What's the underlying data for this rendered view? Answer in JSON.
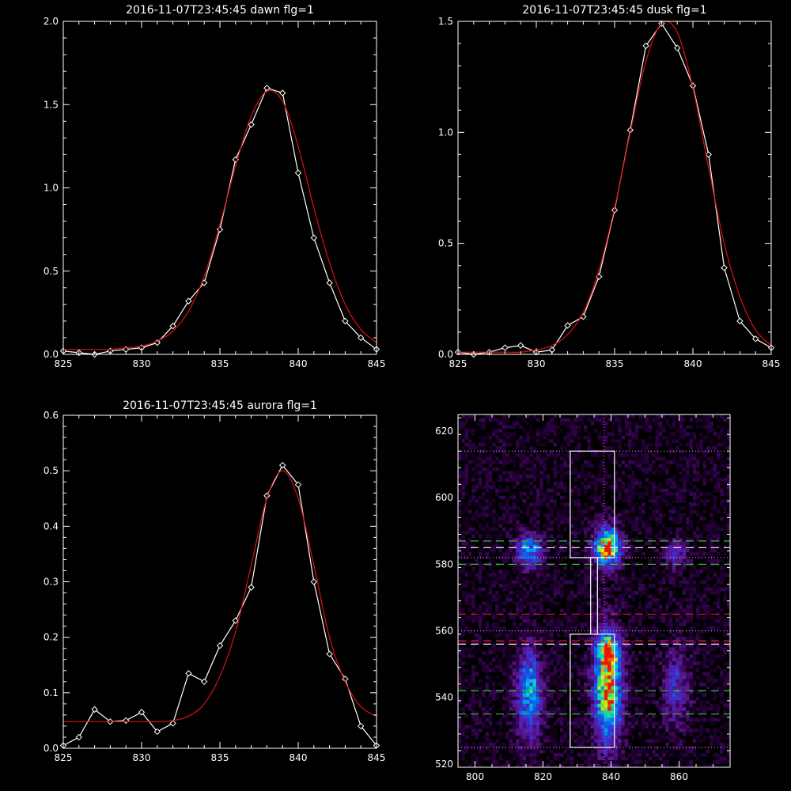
{
  "colors": {
    "background": "#000000",
    "axis": "#ffffff",
    "data": "#ffffff",
    "fit": "#e01010",
    "green_line": "#30c030",
    "red_line": "#d02020",
    "white_dashed": "#ffffff"
  },
  "chart_data": [
    {
      "type": "line",
      "title": "2016-11-07T23:45:45 dawn flg=1",
      "xlim": [
        825,
        845
      ],
      "ylim": [
        0,
        2.0
      ],
      "xticks": [
        "825",
        "830",
        "835",
        "840",
        "845"
      ],
      "yticks": [
        "0.0",
        "0.5",
        "1.0",
        "1.5",
        "2.0"
      ],
      "series": [
        {
          "marker": "diamond",
          "x": [
            825,
            826,
            827,
            828,
            829,
            830,
            831,
            832,
            833,
            834,
            835,
            836,
            837,
            838,
            839,
            840,
            841,
            842,
            843,
            844,
            845
          ],
          "y": [
            0.02,
            0.01,
            0.0,
            0.02,
            0.03,
            0.04,
            0.07,
            0.17,
            0.32,
            0.43,
            0.75,
            1.17,
            1.38,
            1.6,
            1.57,
            1.09,
            0.7,
            0.43,
            0.2,
            0.1,
            0.03
          ]
        },
        {
          "marker": "none",
          "x": [
            825,
            826,
            827,
            828,
            829,
            830,
            831,
            832,
            833,
            834,
            835,
            836,
            837,
            838,
            839,
            840,
            841,
            842,
            843,
            844,
            845
          ],
          "y": [
            0.03,
            0.03,
            0.03,
            0.03,
            0.04,
            0.05,
            0.08,
            0.14,
            0.26,
            0.47,
            0.78,
            1.13,
            1.43,
            1.58,
            1.52,
            1.25,
            0.88,
            0.55,
            0.3,
            0.15,
            0.07
          ]
        }
      ]
    },
    {
      "type": "line",
      "title": "2016-11-07T23:45:45 dusk flg=1",
      "xlim": [
        825,
        845
      ],
      "ylim": [
        0,
        1.5
      ],
      "xticks": [
        "825",
        "830",
        "835",
        "840",
        "845"
      ],
      "yticks": [
        "0.0",
        "0.5",
        "1.0",
        "1.5"
      ],
      "series": [
        {
          "marker": "diamond",
          "x": [
            825,
            826,
            827,
            828,
            829,
            830,
            831,
            832,
            833,
            834,
            835,
            836,
            837,
            838,
            839,
            840,
            841,
            842,
            843,
            844,
            845
          ],
          "y": [
            0.01,
            0.0,
            0.01,
            0.03,
            0.04,
            0.01,
            0.02,
            0.13,
            0.17,
            0.35,
            0.65,
            1.01,
            1.39,
            1.49,
            1.38,
            1.21,
            0.9,
            0.39,
            0.15,
            0.07,
            0.03
          ]
        },
        {
          "marker": "none",
          "x": [
            825,
            826,
            827,
            828,
            829,
            830,
            831,
            832,
            833,
            834,
            835,
            836,
            837,
            838,
            839,
            840,
            841,
            842,
            843,
            844,
            845
          ],
          "y": [
            0.01,
            0.01,
            0.01,
            0.01,
            0.01,
            0.02,
            0.04,
            0.09,
            0.19,
            0.38,
            0.66,
            1.0,
            1.32,
            1.49,
            1.45,
            1.2,
            0.84,
            0.5,
            0.26,
            0.11,
            0.04
          ]
        }
      ]
    },
    {
      "type": "line",
      "title": "2016-11-07T23:45:45 aurora flg=1",
      "xlim": [
        825,
        845
      ],
      "ylim": [
        0,
        0.6
      ],
      "xticks": [
        "825",
        "830",
        "835",
        "840",
        "845"
      ],
      "yticks": [
        "0.0",
        "0.1",
        "0.2",
        "0.3",
        "0.4",
        "0.5",
        "0.6"
      ],
      "series": [
        {
          "marker": "diamond",
          "x": [
            825,
            826,
            827,
            828,
            829,
            830,
            831,
            832,
            833,
            834,
            835,
            836,
            837,
            838,
            839,
            840,
            841,
            842,
            843,
            844,
            845
          ],
          "y": [
            0.005,
            0.02,
            0.07,
            0.048,
            0.05,
            0.065,
            0.03,
            0.045,
            0.135,
            0.12,
            0.185,
            0.23,
            0.29,
            0.455,
            0.51,
            0.475,
            0.3,
            0.17,
            0.125,
            0.04,
            0.005
          ]
        },
        {
          "marker": "none",
          "x": [
            825,
            826,
            827,
            828,
            829,
            830,
            831,
            832,
            833,
            834,
            835,
            836,
            837,
            838,
            839,
            840,
            841,
            842,
            843,
            844,
            845
          ],
          "y": [
            0.048,
            0.048,
            0.048,
            0.048,
            0.048,
            0.048,
            0.048,
            0.05,
            0.058,
            0.08,
            0.13,
            0.21,
            0.33,
            0.45,
            0.5,
            0.45,
            0.33,
            0.2,
            0.12,
            0.075,
            0.058
          ]
        }
      ]
    },
    {
      "type": "heatmap",
      "xlim": [
        795,
        875
      ],
      "ylim": [
        519,
        625
      ],
      "xticks": [
        "800",
        "820",
        "840",
        "860"
      ],
      "yticks": [
        "520",
        "540",
        "560",
        "580",
        "600",
        "620"
      ],
      "spots": [
        {
          "x": 816,
          "y": 584,
          "sx": 2.6,
          "sy": 3.5,
          "amp": 0.6
        },
        {
          "x": 839,
          "y": 585,
          "sx": 2.6,
          "sy": 4.0,
          "amp": 1.0
        },
        {
          "x": 859,
          "y": 583,
          "sx": 2.2,
          "sy": 3.0,
          "amp": 0.3
        },
        {
          "x": 816,
          "y": 541,
          "sx": 2.6,
          "sy": 9.0,
          "amp": 0.62
        },
        {
          "x": 839,
          "y": 543,
          "sx": 2.8,
          "sy": 11.0,
          "amp": 0.95
        },
        {
          "x": 839,
          "y": 554,
          "sx": 2.0,
          "sy": 3.0,
          "amp": 0.6
        },
        {
          "x": 859,
          "y": 543,
          "sx": 2.6,
          "sy": 8.0,
          "amp": 0.35
        }
      ],
      "green_dashed_y": [
        587,
        580,
        542,
        535
      ],
      "white_dashed_y": [
        585,
        556
      ],
      "red_dashed_y": [
        565,
        557
      ],
      "white_dotted_y": [
        614,
        582,
        560,
        525
      ],
      "vertical_dotted_x": 838,
      "boxes": [
        {
          "x0": 828,
          "x1": 841,
          "y0": 582,
          "y1": 614
        },
        {
          "x0": 828,
          "x1": 841,
          "y0": 525,
          "y1": 559
        },
        {
          "x0": 834,
          "x1": 836,
          "y0": 559,
          "y1": 582
        }
      ]
    }
  ]
}
